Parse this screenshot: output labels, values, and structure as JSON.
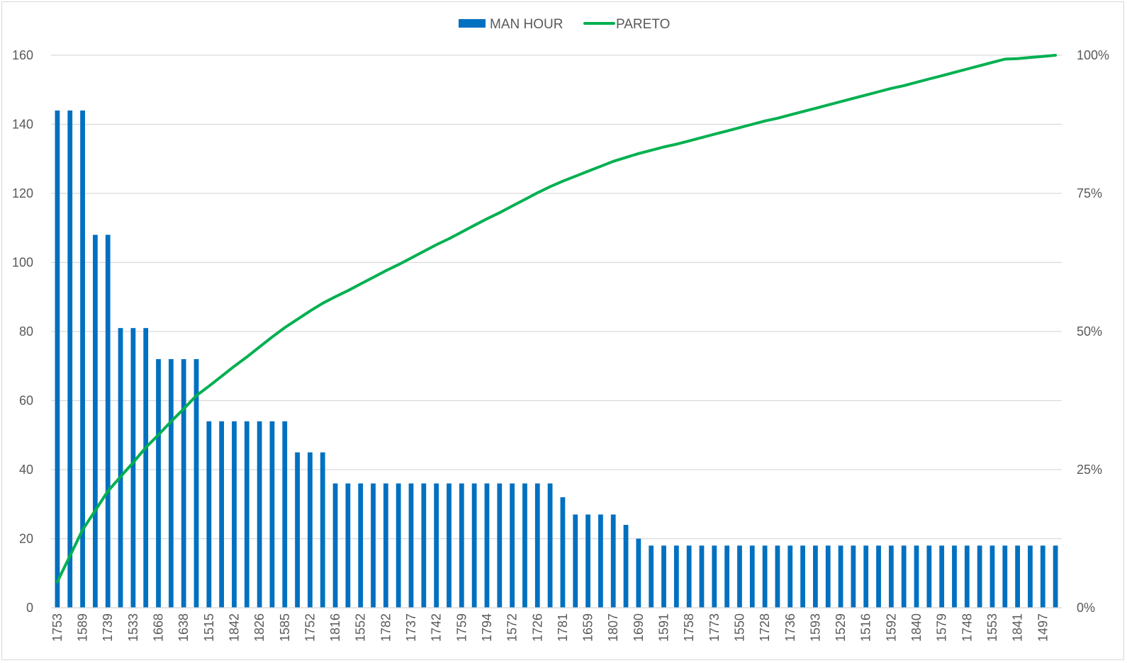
{
  "chart_data": {
    "type": "bar",
    "title": "",
    "xlabel": "",
    "ylabel": "",
    "ylim": [
      0,
      160
    ],
    "y2lim": [
      0,
      100
    ],
    "y_ticks": [
      "0",
      "20",
      "40",
      "60",
      "80",
      "100",
      "120",
      "140",
      "160"
    ],
    "y2_ticks": [
      "0%",
      "25%",
      "50%",
      "75%",
      "100%"
    ],
    "grid": true,
    "legend": "top-center",
    "x_tick_labels": [
      "1753",
      "1589",
      "1739",
      "1533",
      "1668",
      "1638",
      "1515",
      "1842",
      "1826",
      "1585",
      "1752",
      "1816",
      "1552",
      "1782",
      "1737",
      "1742",
      "1759",
      "1794",
      "1572",
      "1726",
      "1781",
      "1659",
      "1807",
      "1690",
      "1591",
      "1758",
      "1773",
      "1550",
      "1728",
      "1736",
      "1593",
      "1529",
      "1516",
      "1592",
      "1840",
      "1579",
      "1748",
      "1553",
      "1841",
      "1497"
    ],
    "series": [
      {
        "name": "MAN HOUR",
        "kind": "bar",
        "color": "#0070c0",
        "values": [
          144,
          144,
          144,
          108,
          108,
          81,
          81,
          81,
          72,
          72,
          72,
          72,
          54,
          54,
          54,
          54,
          54,
          54,
          54,
          45,
          45,
          45,
          36,
          36,
          36,
          36,
          36,
          36,
          36,
          36,
          36,
          36,
          36,
          36,
          36,
          36,
          36,
          36,
          36,
          36,
          32,
          27,
          27,
          27,
          27,
          24,
          20,
          18,
          18,
          18,
          18,
          18,
          18,
          18,
          18,
          18,
          18,
          18,
          18,
          18,
          18,
          18,
          18,
          18,
          18,
          18,
          18,
          18,
          18,
          18,
          18,
          18,
          18,
          18,
          18,
          18,
          18,
          18,
          18,
          18
        ]
      },
      {
        "name": "PARETO",
        "kind": "line",
        "axis": "secondary",
        "unit": "%",
        "color": "#00b050",
        "values": [
          4.7,
          9.4,
          14.1,
          17.6,
          21.1,
          23.7,
          26.3,
          29.0,
          31.3,
          33.7,
          36.0,
          38.4,
          40.1,
          41.9,
          43.7,
          45.4,
          47.2,
          49.0,
          50.7,
          52.2,
          53.7,
          55.1,
          56.3,
          57.4,
          58.6,
          59.8,
          61.0,
          62.1,
          63.3,
          64.5,
          65.7,
          66.8,
          68.0,
          69.2,
          70.4,
          71.5,
          72.7,
          73.9,
          75.1,
          76.2,
          77.2,
          78.1,
          79.0,
          79.9,
          80.8,
          81.5,
          82.2,
          82.8,
          83.4,
          83.9,
          84.5,
          85.1,
          85.7,
          86.3,
          86.9,
          87.5,
          88.1,
          88.6,
          89.2,
          89.8,
          90.4,
          91.0,
          91.6,
          92.2,
          92.8,
          93.4,
          94.0,
          94.5,
          95.1,
          95.7,
          96.3,
          96.9,
          97.5,
          98.1,
          98.7,
          99.3,
          99.4,
          99.6,
          99.8,
          100.0
        ]
      }
    ]
  }
}
